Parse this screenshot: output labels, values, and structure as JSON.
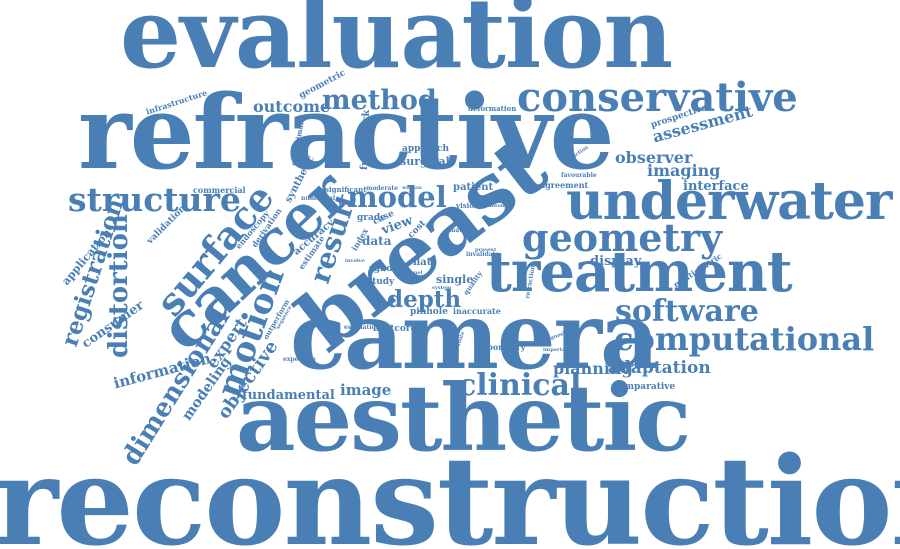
{
  "cloud": {
    "color": "#4a7fb5",
    "words": [
      {
        "id": "reconstruction",
        "text": "reconstruction"
      },
      {
        "id": "evaluation",
        "text": "evaluation"
      },
      {
        "id": "refractive",
        "text": "refractive"
      },
      {
        "id": "aesthetic",
        "text": "aesthetic"
      },
      {
        "id": "camera",
        "text": "camera"
      },
      {
        "id": "breast",
        "text": "breast"
      },
      {
        "id": "cancer",
        "text": "cancer"
      },
      {
        "id": "treatment",
        "text": "treatment"
      },
      {
        "id": "underwater",
        "text": "underwater"
      },
      {
        "id": "conservative",
        "text": "conservative"
      },
      {
        "id": "geometry",
        "text": "geometry"
      },
      {
        "id": "computational",
        "text": "computational"
      },
      {
        "id": "surface",
        "text": "surface"
      },
      {
        "id": "structure",
        "text": "structure"
      },
      {
        "id": "method",
        "text": "method"
      },
      {
        "id": "model",
        "text": "model"
      },
      {
        "id": "result",
        "text": "result"
      },
      {
        "id": "motion",
        "text": "motion"
      },
      {
        "id": "distortion",
        "text": "distortion"
      },
      {
        "id": "software",
        "text": "software"
      },
      {
        "id": "clinical",
        "text": "clinical"
      },
      {
        "id": "dimensional",
        "text": "dimensional"
      },
      {
        "id": "registration",
        "text": "registration"
      },
      {
        "id": "depth",
        "text": "depth"
      },
      {
        "id": "adaptation",
        "text": "adaptation"
      },
      {
        "id": "planning",
        "text": "planning"
      },
      {
        "id": "outcome",
        "text": "outcome"
      },
      {
        "id": "assessment",
        "text": "assessment"
      },
      {
        "id": "imaging",
        "text": "imaging"
      },
      {
        "id": "observer",
        "text": "observer"
      },
      {
        "id": "interface",
        "text": "interface"
      },
      {
        "id": "display",
        "text": "display"
      },
      {
        "id": "image",
        "text": "image"
      },
      {
        "id": "information",
        "text": "information"
      },
      {
        "id": "fundamental",
        "text": "fundamental"
      },
      {
        "id": "objective",
        "text": "objective"
      },
      {
        "id": "modeling",
        "text": "modeling"
      },
      {
        "id": "expert",
        "text": "expert"
      },
      {
        "id": "consumer",
        "text": "consumer"
      },
      {
        "id": "application",
        "text": "application"
      },
      {
        "id": "validation",
        "text": "validation"
      },
      {
        "id": "commercial",
        "text": "commercial"
      },
      {
        "id": "endoscopy",
        "text": "endoscopy"
      },
      {
        "id": "derivation",
        "text": "derivation"
      },
      {
        "id": "synthetic",
        "text": "synthetic"
      },
      {
        "id": "suboptimal",
        "text": "suboptimal"
      },
      {
        "id": "geometric",
        "text": "geometric"
      },
      {
        "id": "framework",
        "text": "framework"
      },
      {
        "id": "approach",
        "text": "approach"
      },
      {
        "id": "surgical",
        "text": "surgical"
      },
      {
        "id": "significant",
        "text": "significant"
      },
      {
        "id": "moderate",
        "text": "moderate"
      },
      {
        "id": "numerical",
        "text": "numerical"
      },
      {
        "id": "accuracy",
        "text": "accuracy"
      },
      {
        "id": "estimate",
        "text": "estimate"
      },
      {
        "id": "grade",
        "text": "grade"
      },
      {
        "id": "data",
        "text": "data"
      },
      {
        "id": "view",
        "text": "view"
      },
      {
        "id": "case",
        "text": "case"
      },
      {
        "id": "patient",
        "text": "patient"
      },
      {
        "id": "vision",
        "text": "vision"
      },
      {
        "id": "agreement",
        "text": "agreement"
      },
      {
        "id": "favourable",
        "text": "favourable"
      },
      {
        "id": "prospective",
        "text": "prospective"
      },
      {
        "id": "prediction",
        "text": "prediction"
      },
      {
        "id": "infrastructure",
        "text": "infrastructure"
      },
      {
        "id": "deformation",
        "text": "deformation"
      },
      {
        "id": "rgbd",
        "text": "rgbd"
      },
      {
        "id": "study",
        "text": "study"
      },
      {
        "id": "flat",
        "text": "flat"
      },
      {
        "id": "single",
        "text": "single"
      },
      {
        "id": "pinhole",
        "text": "pinhole"
      },
      {
        "id": "inaccurate",
        "text": "inaccurate"
      },
      {
        "id": "bcctcore",
        "text": "bcctcore"
      },
      {
        "id": "laboratory",
        "text": "laboratory"
      },
      {
        "id": "comparative",
        "text": "comparative"
      },
      {
        "id": "multicentric",
        "text": "multicentric"
      },
      {
        "id": "expensive",
        "text": "expensive"
      },
      {
        "id": "estimation",
        "text": "estimation"
      },
      {
        "id": "outperform",
        "text": "outperform"
      },
      {
        "id": "matrix",
        "text": "matrix"
      },
      {
        "id": "invalidate",
        "text": "invalidate"
      },
      {
        "id": "phantom",
        "text": "phantom"
      },
      {
        "id": "index",
        "text": "index"
      },
      {
        "id": "cost",
        "text": "cost"
      },
      {
        "id": "prognosis",
        "text": "prognosis"
      },
      {
        "id": "important",
        "text": "important"
      },
      {
        "id": "refraction",
        "text": "refraction"
      },
      {
        "id": "woman",
        "text": "woman"
      },
      {
        "id": "sequence",
        "text": "sequence"
      },
      {
        "id": "panel",
        "text": "panel"
      },
      {
        "id": "system",
        "text": "system"
      },
      {
        "id": "quality",
        "text": "quality"
      },
      {
        "id": "present",
        "text": "present"
      },
      {
        "id": "validate",
        "text": "validate"
      },
      {
        "id": "involve",
        "text": "involve"
      },
      {
        "id": "president",
        "text": "president"
      }
    ]
  }
}
